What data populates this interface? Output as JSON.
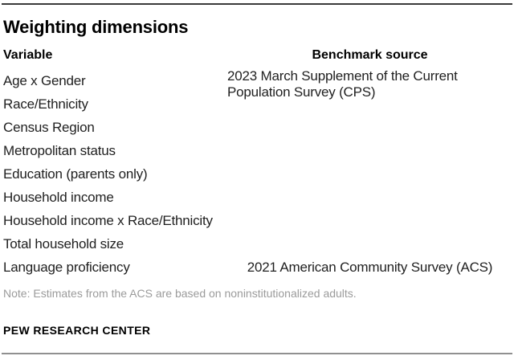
{
  "chart_data": {
    "type": "table",
    "title": "Weighting dimensions",
    "columns": [
      "Variable",
      "Benchmark source"
    ],
    "variables": [
      "Age x Gender",
      "Race/Ethnicity",
      "Census Region",
      "Metropolitan status",
      "Education (parents only)",
      "Household income",
      "Household income x Race/Ethnicity",
      "Total household size",
      "Language proficiency"
    ],
    "benchmarks": {
      "cps": "2023 March Supplement of the Current Population Survey (CPS)",
      "acs": "2021 American Community Survey (ACS)"
    },
    "note": "Note: Estimates from the ACS are based on noninstitutionalized adults.",
    "source": "PEW RESEARCH CENTER"
  },
  "colors": {
    "background": "#ffffff",
    "text": "#1f1f1f",
    "heading": "#000000",
    "note_text": "#9b9b9b",
    "rule_top": "#3a3a3a",
    "rule_bottom": "#909090"
  }
}
